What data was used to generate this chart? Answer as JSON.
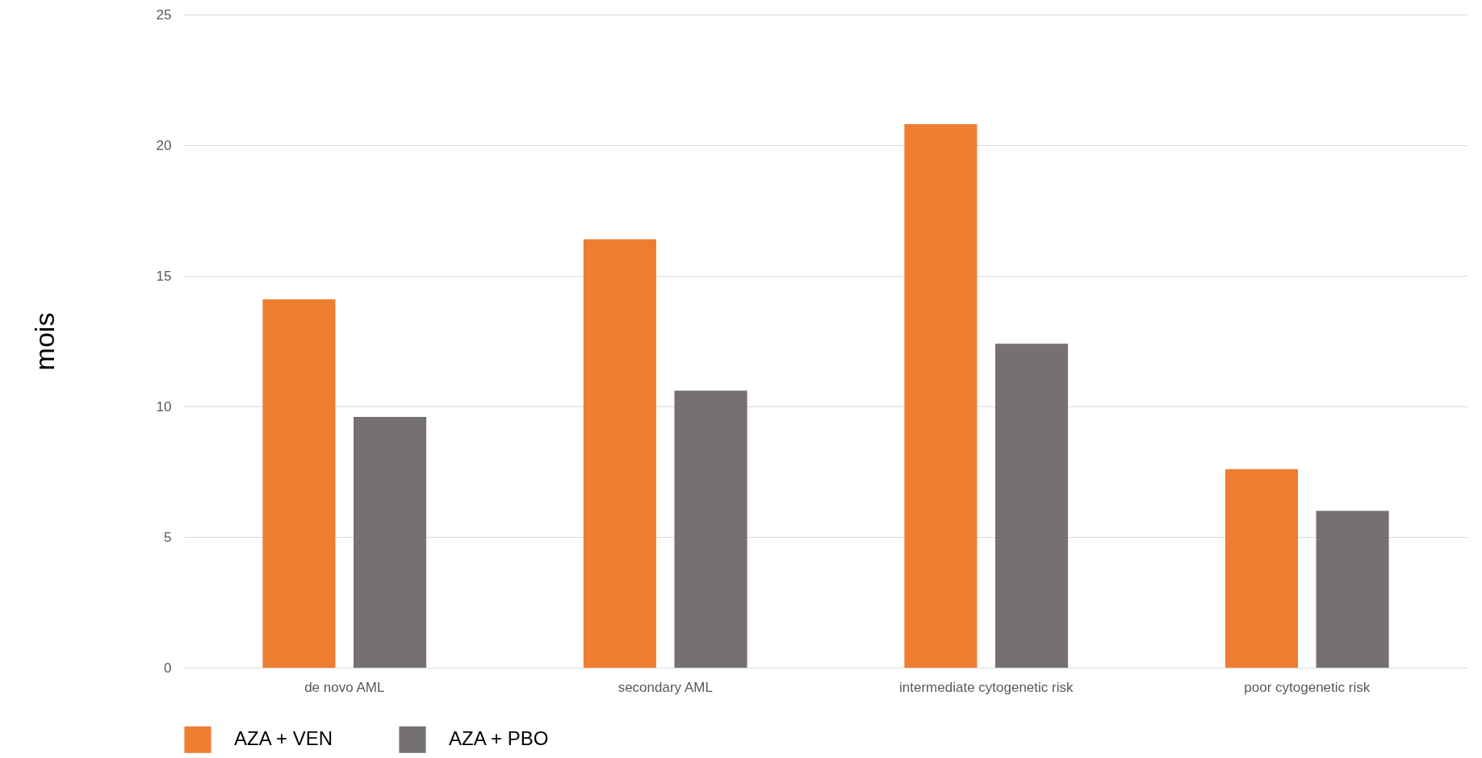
{
  "chart_data": {
    "type": "bar",
    "ylabel": "mois",
    "categories": [
      "de novo AML",
      "secondary AML",
      "intermediate cytogenetic risk",
      "poor cytogenetic risk"
    ],
    "series": [
      {
        "name": "AZA + VEN",
        "color": "#ed7d31",
        "values": [
          14.1,
          16.4,
          20.8,
          7.6
        ]
      },
      {
        "name": "AZA + PBO",
        "color": "#767171",
        "values": [
          9.6,
          10.6,
          12.4,
          6.0
        ]
      }
    ],
    "ylim": [
      0,
      25
    ],
    "yticks": [
      0,
      5,
      10,
      15,
      20,
      25
    ],
    "grid": "y",
    "legend": "bottom"
  }
}
